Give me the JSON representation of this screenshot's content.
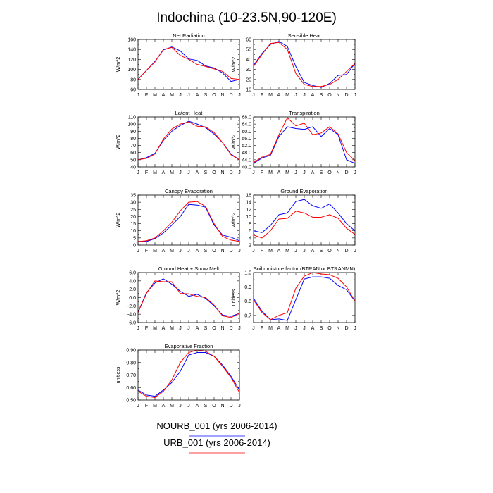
{
  "figure": {
    "title": "Indochina (10-23.5N,90-120E)",
    "months": [
      "J",
      "F",
      "M",
      "A",
      "M",
      "J",
      "J",
      "A",
      "S",
      "O",
      "N",
      "D",
      "J"
    ],
    "colors": {
      "NOURB_001": "#0000ff",
      "URB_001": "#ff0000"
    }
  },
  "legend": {
    "entries": [
      {
        "label": "NOURB_001 (yrs 2006-2014)",
        "color": "#0000ff"
      },
      {
        "label": "URB_001 (yrs 2006-2014)",
        "color": "#ff0000"
      }
    ]
  },
  "chart_data": [
    {
      "type": "line",
      "title": "Net Radiation",
      "ylabel": "W/m^2",
      "ylim": [
        60,
        160
      ],
      "yticks": [
        60,
        80,
        100,
        120,
        140,
        160
      ],
      "tick_decimals": 0,
      "x": [
        "J",
        "F",
        "M",
        "A",
        "M",
        "J",
        "J",
        "A",
        "S",
        "O",
        "N",
        "D",
        "J"
      ],
      "series": [
        {
          "name": "NOURB_001",
          "values": [
            80,
            98,
            116,
            139,
            145,
            137,
            121,
            118,
            107,
            103,
            93,
            76,
            80
          ]
        },
        {
          "name": "URB_001",
          "values": [
            80,
            98,
            115,
            140,
            144,
            128,
            120,
            110,
            106,
            101,
            96,
            82,
            80
          ]
        }
      ]
    },
    {
      "type": "line",
      "title": "Sensible Heat",
      "ylabel": "W/m^2",
      "ylim": [
        10,
        60
      ],
      "yticks": [
        10,
        20,
        30,
        40,
        50,
        60
      ],
      "tick_decimals": 0,
      "x": [
        "J",
        "F",
        "M",
        "A",
        "M",
        "J",
        "J",
        "A",
        "S",
        "O",
        "N",
        "D",
        "J"
      ],
      "series": [
        {
          "name": "NOURB_001",
          "values": [
            34,
            46,
            55,
            58,
            53,
            33,
            17,
            14,
            12,
            16,
            24,
            25,
            36
          ]
        },
        {
          "name": "URB_001",
          "values": [
            33,
            45,
            56,
            57,
            50,
            26,
            15,
            13,
            13,
            15,
            20,
            28,
            36
          ]
        }
      ]
    },
    {
      "type": "line",
      "title": "Latent Heat",
      "ylabel": "W/m^2",
      "ylim": [
        40,
        110
      ],
      "yticks": [
        40,
        50,
        60,
        70,
        80,
        90,
        100,
        110
      ],
      "tick_decimals": 0,
      "x": [
        "J",
        "F",
        "M",
        "A",
        "M",
        "J",
        "J",
        "A",
        "S",
        "O",
        "N",
        "D",
        "J"
      ],
      "series": [
        {
          "name": "NOURB_001",
          "values": [
            50,
            53,
            59,
            77,
            90,
            98,
            104,
            100,
            95,
            86,
            74,
            58,
            50
          ]
        },
        {
          "name": "URB_001",
          "values": [
            50,
            52,
            58,
            79,
            93,
            100,
            103,
            97,
            96,
            88,
            74,
            57,
            50
          ]
        }
      ]
    },
    {
      "type": "line",
      "title": "Transpiration",
      "ylabel": "W/m^2",
      "ylim": [
        40,
        68
      ],
      "yticks": [
        40,
        44,
        48,
        52,
        56,
        60,
        64,
        68
      ],
      "tick_decimals": 1,
      "x": [
        "J",
        "F",
        "M",
        "A",
        "M",
        "J",
        "J",
        "A",
        "S",
        "O",
        "N",
        "D",
        "J"
      ],
      "series": [
        {
          "name": "NOURB_001",
          "values": [
            42,
            45,
            46.5,
            57,
            62.5,
            61.5,
            61,
            62.5,
            57,
            61.5,
            58,
            44,
            42
          ]
        },
        {
          "name": "URB_001",
          "values": [
            42.5,
            45.5,
            47,
            58,
            67.5,
            63,
            64.5,
            58,
            59,
            62.5,
            58.5,
            48,
            43.5
          ]
        }
      ]
    },
    {
      "type": "line",
      "title": "Canopy Evaporation",
      "ylabel": "W/m^2",
      "ylim": [
        0,
        35
      ],
      "yticks": [
        0,
        5,
        10,
        15,
        20,
        25,
        30,
        35
      ],
      "tick_decimals": 0,
      "x": [
        "J",
        "F",
        "M",
        "A",
        "M",
        "J",
        "J",
        "A",
        "S",
        "O",
        "N",
        "D",
        "J"
      ],
      "series": [
        {
          "name": "NOURB_001",
          "values": [
            2.5,
            2.5,
            4.5,
            8.5,
            14,
            20,
            28.5,
            28,
            26.5,
            14,
            7,
            5.5,
            3
          ]
        },
        {
          "name": "URB_001",
          "values": [
            2.5,
            3,
            5,
            10,
            16,
            24,
            30,
            30.5,
            27,
            15,
            6,
            3.5,
            2.5
          ]
        }
      ]
    },
    {
      "type": "line",
      "title": "Ground Evaporation",
      "ylabel": "W/m^2",
      "ylim": [
        2,
        16
      ],
      "yticks": [
        2,
        4,
        6,
        8,
        10,
        12,
        14,
        16
      ],
      "tick_decimals": 0,
      "x": [
        "J",
        "F",
        "M",
        "A",
        "M",
        "J",
        "J",
        "A",
        "S",
        "O",
        "N",
        "D",
        "J"
      ],
      "series": [
        {
          "name": "NOURB_001",
          "values": [
            6,
            5.5,
            7.5,
            10.5,
            11,
            14.2,
            14.8,
            13,
            12.3,
            13.5,
            11,
            8,
            6
          ]
        },
        {
          "name": "URB_001",
          "values": [
            4.8,
            4,
            6,
            9.3,
            9.5,
            11.5,
            11,
            9.8,
            9.8,
            10.5,
            9.5,
            6.7,
            5
          ]
        }
      ]
    },
    {
      "type": "line",
      "title": "Ground Heat + Snow Melt",
      "ylabel": "W/m^2",
      "ylim": [
        -6,
        6
      ],
      "yticks": [
        -6,
        -4,
        -2,
        0,
        2,
        4,
        6
      ],
      "tick_decimals": 1,
      "x": [
        "J",
        "F",
        "M",
        "A",
        "M",
        "J",
        "J",
        "A",
        "S",
        "O",
        "N",
        "D",
        "J"
      ],
      "series": [
        {
          "name": "NOURB_001",
          "values": [
            -3.5,
            1.2,
            3.5,
            4.5,
            3.2,
            1.5,
            0.3,
            0.8,
            -0.2,
            -2,
            -4.2,
            -4.5,
            -3.8
          ]
        },
        {
          "name": "URB_001",
          "values": [
            -3.6,
            1,
            4,
            3.8,
            3.8,
            1,
            0.9,
            0.3,
            0,
            -1.8,
            -4.4,
            -4.8,
            -3.8
          ]
        }
      ]
    },
    {
      "type": "line",
      "title": "Soil moisture factor (BTRAN or BTRANMN)",
      "ylabel": "unitless",
      "ylim": [
        0.65,
        1.0
      ],
      "yticks": [
        0.7,
        0.8,
        0.9,
        1.0
      ],
      "tick_decimals": 1,
      "x": [
        "J",
        "F",
        "M",
        "A",
        "M",
        "J",
        "J",
        "A",
        "S",
        "O",
        "N",
        "D",
        "J"
      ],
      "series": [
        {
          "name": "NOURB_001",
          "values": [
            0.82,
            0.73,
            0.67,
            0.675,
            0.665,
            0.81,
            0.955,
            0.97,
            0.97,
            0.96,
            0.91,
            0.88,
            0.8
          ]
        },
        {
          "name": "URB_001",
          "values": [
            0.81,
            0.72,
            0.67,
            0.7,
            0.72,
            0.89,
            0.975,
            1.0,
            0.99,
            0.985,
            0.96,
            0.9,
            0.8
          ]
        }
      ]
    },
    {
      "type": "line",
      "title": "Evaporative Fraction",
      "ylabel": "unitless",
      "ylim": [
        0.5,
        0.9
      ],
      "yticks": [
        0.5,
        0.6,
        0.7,
        0.8,
        0.9
      ],
      "tick_decimals": 2,
      "x": [
        "J",
        "F",
        "M",
        "A",
        "M",
        "J",
        "J",
        "A",
        "S",
        "O",
        "N",
        "D",
        "J"
      ],
      "series": [
        {
          "name": "NOURB_001",
          "values": [
            0.58,
            0.54,
            0.53,
            0.58,
            0.64,
            0.73,
            0.86,
            0.88,
            0.88,
            0.85,
            0.78,
            0.69,
            0.58
          ]
        },
        {
          "name": "URB_001",
          "values": [
            0.57,
            0.53,
            0.52,
            0.57,
            0.66,
            0.8,
            0.88,
            0.9,
            0.89,
            0.85,
            0.77,
            0.68,
            0.56
          ]
        }
      ]
    }
  ]
}
